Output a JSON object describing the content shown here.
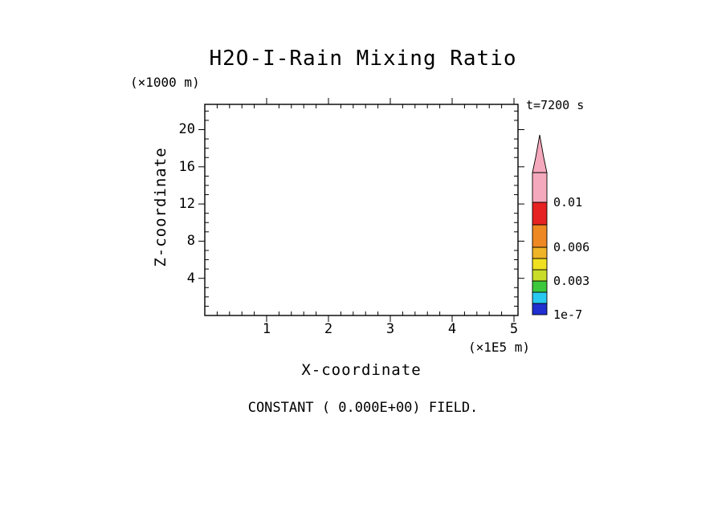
{
  "title": "H2O-I-Rain Mixing Ratio",
  "time_label": "t=7200 s",
  "caption": "CONSTANT ( 0.000E+00) FIELD.",
  "axes": {
    "x": {
      "label": "X-coordinate",
      "unit": "(×1E5 m)",
      "ticks": [
        "1",
        "2",
        "3",
        "4",
        "5"
      ]
    },
    "y": {
      "label": "Z-coordinate",
      "unit": "(×1000 m)",
      "ticks": [
        "20",
        "16",
        "12",
        "8",
        "4"
      ]
    }
  },
  "colorbar": {
    "labels": [
      "0.01",
      "0.006",
      "0.003",
      "1e-7"
    ],
    "segments": [
      "#1f2fd0",
      "#29c8f0",
      "#3cc83c",
      "#c8dc28",
      "#f0e020",
      "#f0b428",
      "#ee8822",
      "#e62222",
      "#f5a9bc"
    ],
    "arrow_color": "#f5a9bc"
  },
  "chart_data": {
    "type": "heatmap",
    "title": "H2O-I-Rain Mixing Ratio",
    "xlabel": "X-coordinate",
    "x_unit": "(×1E5 m)",
    "ylabel": "Z-coordinate",
    "y_unit": "(×1000 m)",
    "xlim": [
      0,
      5.1
    ],
    "ylim": [
      0,
      22.8
    ],
    "x_ticks": [
      1,
      2,
      3,
      4,
      5
    ],
    "y_ticks": [
      4,
      8,
      12,
      16,
      20
    ],
    "time": "t=7200 s",
    "field_note": "CONSTANT ( 0.000E+00) FIELD.",
    "values": "uniform 0.000E+00 everywhere (plot area empty, no contours drawn)",
    "colorbar_levels": [
      "1e-7",
      "0.003",
      "0.006",
      "0.01"
    ],
    "colorbar_colors_bottom_to_top": [
      "#1f2fd0",
      "#29c8f0",
      "#3cc83c",
      "#c8dc28",
      "#f0e020",
      "#f0b428",
      "#ee8822",
      "#e62222",
      "#f5a9bc"
    ],
    "legend_position": "right",
    "grid": false
  }
}
